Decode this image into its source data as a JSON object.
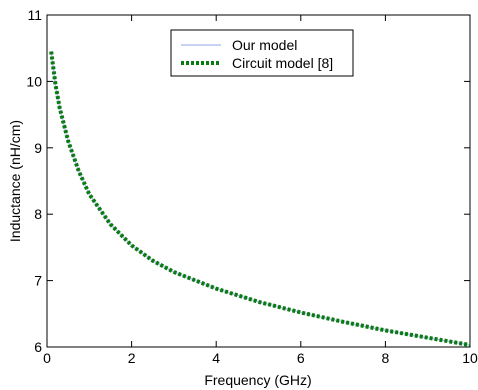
{
  "chart_data": {
    "type": "line",
    "title": "",
    "xlabel": "Frequency (GHz)",
    "ylabel": "Inductance (nH/cm)",
    "xlim": [
      0,
      10
    ],
    "ylim": [
      6,
      11
    ],
    "xticks": [
      "0",
      "2",
      "4",
      "6",
      "8",
      "10"
    ],
    "yticks": [
      "6",
      "7",
      "8",
      "9",
      "10",
      "11"
    ],
    "grid": false,
    "legend_position": "top-center",
    "series": [
      {
        "name": "Our model",
        "color": "#b8c4f0",
        "style": "solid",
        "x": [
          0.1,
          0.2,
          0.3,
          0.5,
          0.75,
          1,
          1.5,
          2,
          2.5,
          3,
          4,
          5,
          6,
          7,
          8,
          9,
          10
        ],
        "y": [
          10.45,
          9.95,
          9.6,
          9.1,
          8.65,
          8.3,
          7.85,
          7.53,
          7.3,
          7.13,
          6.88,
          6.68,
          6.52,
          6.38,
          6.25,
          6.14,
          6.03
        ]
      },
      {
        "name": "Circuit model [8]",
        "color": "#0a7a12",
        "style": "dotted",
        "x": [
          0.1,
          0.2,
          0.3,
          0.5,
          0.75,
          1,
          1.5,
          2,
          2.5,
          3,
          4,
          5,
          6,
          7,
          8,
          9,
          10
        ],
        "y": [
          10.45,
          9.95,
          9.6,
          9.1,
          8.65,
          8.3,
          7.85,
          7.53,
          7.3,
          7.13,
          6.88,
          6.68,
          6.52,
          6.38,
          6.25,
          6.14,
          6.03
        ]
      }
    ]
  }
}
